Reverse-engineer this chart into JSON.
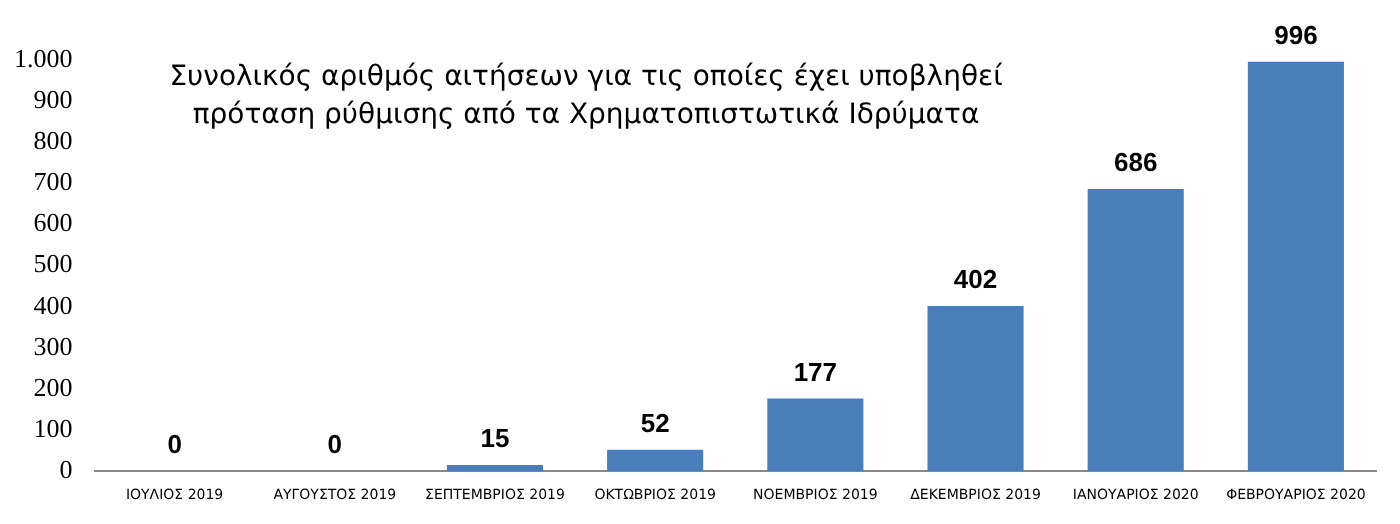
{
  "chart_data": {
    "type": "bar",
    "title": "Συνολικός αριθμός αιτήσεων για τις οποίες έχει υποβληθεί πρόταση ρύθμισης από τα Χρηματοπιστωτικά Ιδρύματα",
    "categories": [
      "ΙΟΥΛΙΟΣ 2019",
      "ΑΥΓΟΥΣΤΟΣ 2019",
      "ΣΕΠΤΕΜΒΡΙΟΣ 2019",
      "ΟΚΤΩΒΡΙΟΣ 2019",
      "ΝΟΕΜΒΡΙΟΣ 2019",
      "ΔΕΚΕΜΒΡΙΟΣ 2019",
      "ΙΑΝΟΥΑΡΙΟΣ 2020",
      "ΦΕΒΡΟΥΑΡΙΟΣ 2020"
    ],
    "values": [
      0,
      0,
      15,
      52,
      177,
      402,
      686,
      996
    ],
    "color": "#4a7ebb",
    "data_labels": true,
    "grid": false,
    "legend": false,
    "ylim": [
      0,
      1000
    ],
    "yticks": [
      0,
      100,
      200,
      300,
      400,
      500,
      600,
      700,
      800,
      900,
      {
        "value": 1000,
        "label": "1.000"
      }
    ]
  }
}
